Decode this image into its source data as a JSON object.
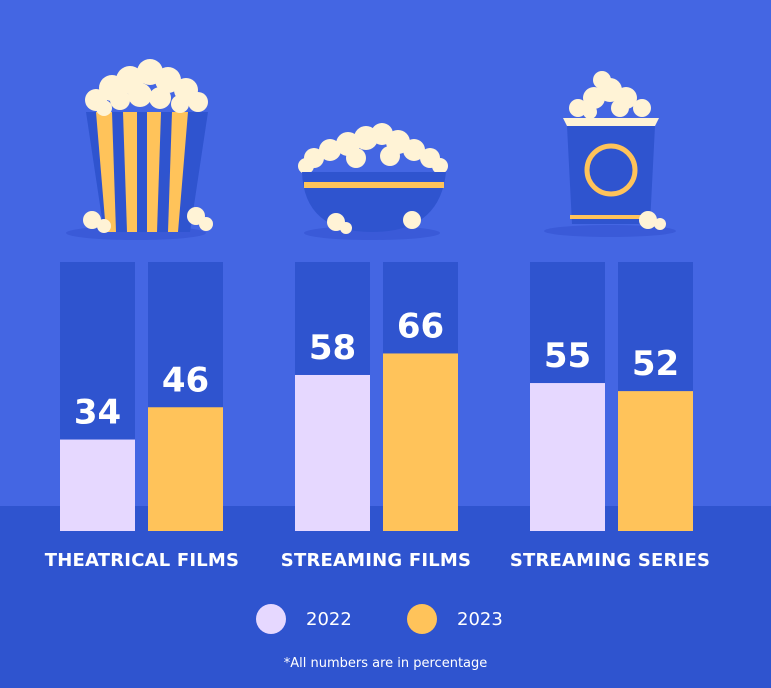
{
  "colors": {
    "background": "#4466e3",
    "bottom_band": "#2f54cf",
    "bar_track": "#2f54cf",
    "series_2022": "#e6d8ff",
    "series_2023": "#ffc35a",
    "popcorn": "#fff3d6",
    "icon_blue": "#2f54cf"
  },
  "icons": [
    "popcorn-bucket-icon",
    "popcorn-bowl-icon",
    "popcorn-box-icon"
  ],
  "chart_data": {
    "type": "bar",
    "categories": [
      "THEATRICAL FILMS",
      "STREAMING FILMS",
      "STREAMING SERIES"
    ],
    "series": [
      {
        "name": "2022",
        "values": [
          34,
          58,
          55
        ]
      },
      {
        "name": "2023",
        "values": [
          46,
          66,
          52
        ]
      }
    ],
    "ylim": [
      0,
      100
    ],
    "value_unit": "percent",
    "grid": false,
    "legend_position": "bottom"
  },
  "legend": {
    "items": [
      "2022",
      "2023"
    ]
  },
  "footnote": "*All numbers are in percentage"
}
